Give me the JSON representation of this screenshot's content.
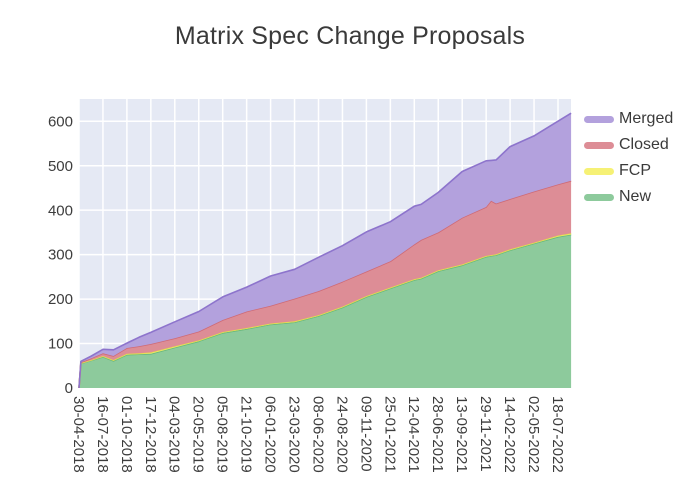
{
  "chart_data": {
    "type": "area",
    "stacked": true,
    "title": "Matrix Spec Change Proposals",
    "plot_bg": "#e5e9f4",
    "grid_color": "#ffffff",
    "text_color": "#3d3d3d",
    "grid": true,
    "legend": {
      "position": "right",
      "entries": [
        "Merged",
        "Closed",
        "FCP",
        "New"
      ]
    },
    "x_axis": {
      "unit": "days since first date",
      "domain_days": [
        0,
        1582
      ],
      "tick_days": [
        0,
        77,
        154,
        231,
        308,
        385,
        462,
        539,
        616,
        693,
        770,
        847,
        924,
        1001,
        1078,
        1155,
        1232,
        1309,
        1386,
        1463,
        1540
      ],
      "tick_labels": [
        "30-04-2018",
        "16-07-2018",
        "01-10-2018",
        "17-12-2018",
        "04-03-2019",
        "20-05-2019",
        "05-08-2019",
        "21-10-2019",
        "06-01-2020",
        "23-03-2020",
        "08-06-2020",
        "24-08-2020",
        "09-11-2020",
        "25-01-2021",
        "12-04-2021",
        "28-06-2021",
        "13-09-2021",
        "29-11-2021",
        "14-02-2022",
        "02-05-2022",
        "18-07-2022"
      ]
    },
    "y_axis": {
      "lim": [
        0,
        650
      ],
      "ticks": [
        0,
        100,
        200,
        300,
        400,
        500,
        600
      ]
    },
    "sample_days": [
      0,
      6,
      40,
      77,
      111,
      154,
      193,
      231,
      308,
      385,
      462,
      539,
      616,
      693,
      770,
      847,
      924,
      1001,
      1078,
      1100,
      1155,
      1232,
      1309,
      1325,
      1341,
      1386,
      1463,
      1540,
      1582
    ],
    "sample_dates": [
      "30-04-2018",
      "06-05-2018",
      "09-06-2018",
      "16-07-2018",
      "19-08-2018",
      "01-10-2018",
      "09-11-2018",
      "17-12-2018",
      "04-03-2019",
      "20-05-2019",
      "05-08-2019",
      "21-10-2019",
      "06-01-2020",
      "23-03-2020",
      "08-06-2020",
      "24-08-2020",
      "09-11-2020",
      "25-01-2021",
      "12-04-2021",
      "04-05-2021",
      "28-06-2021",
      "13-09-2021",
      "29-11-2021",
      "15-12-2021",
      "31-12-2021",
      "14-02-2022",
      "02-05-2022",
      "18-07-2022",
      "29-08-2022"
    ],
    "series": [
      {
        "name": "New",
        "fill": "#8dca9c",
        "line": "#67b87c",
        "values": [
          0,
          55,
          62,
          70,
          61,
          75,
          76,
          77,
          91,
          105,
          124,
          133,
          143,
          148,
          162,
          181,
          205,
          224,
          243,
          246,
          263,
          276,
          295,
          297,
          299,
          310,
          325,
          340,
          345
        ]
      },
      {
        "name": "FCP",
        "fill": "#f6f175",
        "line": "#e3d94e",
        "values": [
          0,
          1,
          1,
          2,
          2,
          2,
          2,
          3,
          3,
          2,
          2,
          2,
          2,
          2,
          2,
          2,
          2,
          2,
          2,
          2,
          2,
          2,
          2,
          2,
          2,
          2,
          2,
          3,
          3
        ]
      },
      {
        "name": "Closed",
        "fill": "#dd8d96",
        "line": "#cf6a75",
        "values": [
          0,
          2,
          4,
          6,
          9,
          13,
          16,
          19,
          18,
          20,
          27,
          37,
          40,
          51,
          54,
          56,
          55,
          59,
          78,
          85,
          85,
          105,
          110,
          122,
          114,
          113,
          115,
          115,
          118
        ]
      },
      {
        "name": "Merged",
        "fill": "#b3a1dd",
        "line": "#8d74cc",
        "values": [
          0,
          2,
          5,
          9,
          14,
          11,
          20,
          26,
          37,
          45,
          52,
          55,
          67,
          66,
          76,
          81,
          89,
          89,
          86,
          80,
          90,
          104,
          104,
          91,
          98,
          118,
          125,
          142,
          152
        ]
      }
    ]
  }
}
